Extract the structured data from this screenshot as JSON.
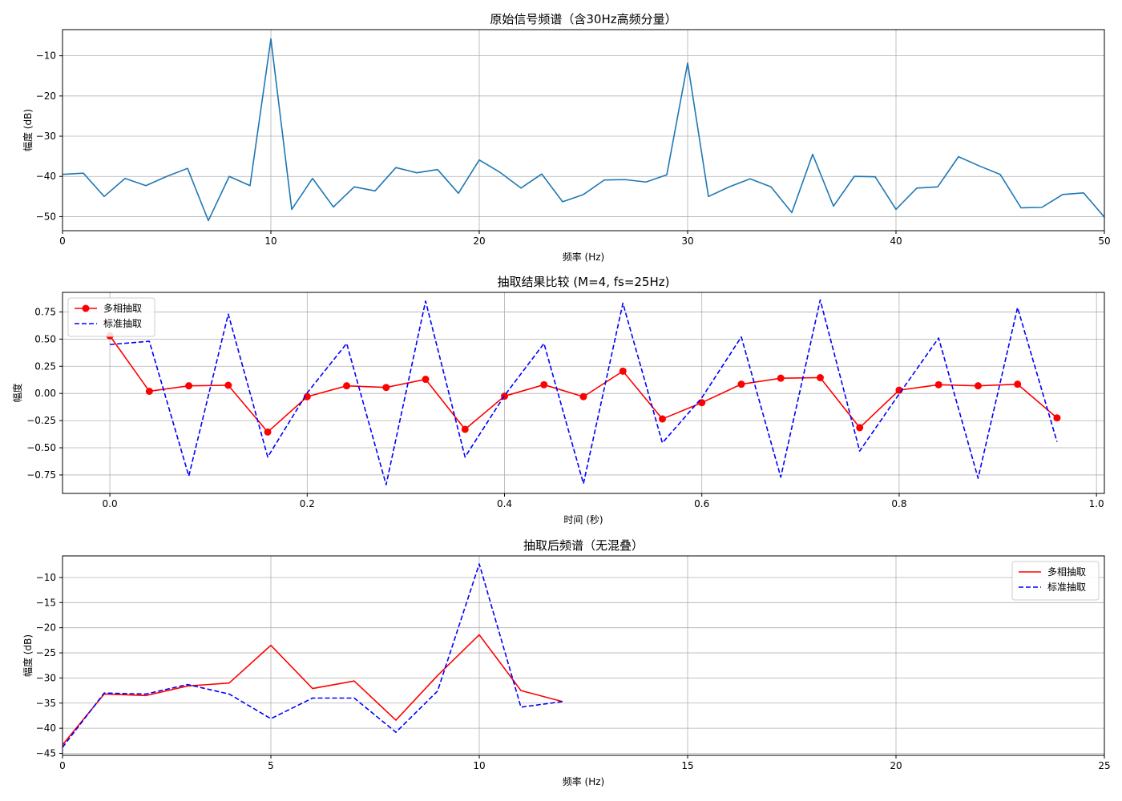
{
  "figure": {
    "background": "#ffffff",
    "grid_color": "#b0b0b0",
    "axis_color": "#000000"
  },
  "chart_data": [
    {
      "type": "line",
      "title": "原始信号频谱（含30Hz高频分量）",
      "xlabel": "频率 (Hz)",
      "ylabel": "幅度 (dB)",
      "xlim": [
        0,
        50
      ],
      "ylim": [
        -53.5,
        -3.5
      ],
      "xticks": [
        0,
        10,
        20,
        30,
        40,
        50
      ],
      "yticks": [
        -50,
        -40,
        -30,
        -20,
        -10
      ],
      "grid": true,
      "legend": null,
      "series": [
        {
          "color": "#1f77b4",
          "style": "solid",
          "marker": "none",
          "x": [
            0,
            1,
            2,
            3,
            4,
            5,
            6,
            7,
            8,
            9,
            10,
            11,
            12,
            13,
            14,
            15,
            16,
            17,
            18,
            19,
            20,
            21,
            22,
            23,
            24,
            25,
            26,
            27,
            28,
            29,
            30,
            31,
            32,
            33,
            34,
            35,
            36,
            37,
            38,
            39,
            40,
            41,
            42,
            43,
            44,
            45,
            46,
            47,
            48,
            49,
            50
          ],
          "y": [
            -39.5,
            -39.2,
            -45,
            -40.5,
            -42.3,
            -40,
            -38,
            -51,
            -40,
            -42.3,
            -5.8,
            -48.2,
            -40.5,
            -47.6,
            -42.6,
            -43.6,
            -37.8,
            -39.1,
            -38.3,
            -44.2,
            -35.9,
            -39,
            -42.9,
            -39.4,
            -46.3,
            -44.5,
            -40.9,
            -40.8,
            -41.4,
            -39.6,
            -11.8,
            -45,
            -42.6,
            -40.6,
            -42.6,
            -49,
            -34.5,
            -47.4,
            -40,
            -40.1,
            -48.2,
            -42.9,
            -42.6,
            -35.1,
            -37.4,
            -39.5,
            -47.8,
            -47.7,
            -44.5,
            -44.1,
            -50.1
          ]
        }
      ]
    },
    {
      "type": "line",
      "title": "抽取结果比较 (M=4, fs=25Hz)",
      "xlabel": "时间 (秒)",
      "ylabel": "幅度",
      "xlim": [
        -0.048,
        1.008
      ],
      "ylim": [
        -0.92,
        0.93
      ],
      "xticks": [
        0.0,
        0.2,
        0.4,
        0.6,
        0.8,
        1.0
      ],
      "xtick_labels": [
        "0.0",
        "0.2",
        "0.4",
        "0.6",
        "0.8",
        "1.0"
      ],
      "yticks": [
        -0.75,
        -0.5,
        -0.25,
        0.0,
        0.25,
        0.5,
        0.75
      ],
      "ytick_labels": [
        "−0.75",
        "−0.50",
        "−0.25",
        "0.00",
        "0.25",
        "0.50",
        "0.75"
      ],
      "grid": true,
      "legend": "upper-left",
      "series": [
        {
          "name": "多相抽取",
          "color": "#ff0000",
          "style": "solid",
          "marker": "circle",
          "x": [
            0,
            0.04,
            0.08,
            0.12,
            0.16,
            0.2,
            0.24,
            0.28,
            0.32,
            0.36,
            0.4,
            0.44,
            0.48,
            0.52,
            0.56,
            0.6,
            0.64,
            0.68,
            0.72,
            0.76,
            0.8,
            0.84,
            0.88,
            0.92,
            0.96
          ],
          "y": [
            0.53,
            0.02,
            0.07,
            0.075,
            -0.355,
            -0.03,
            0.07,
            0.055,
            0.13,
            -0.33,
            -0.025,
            0.08,
            -0.03,
            0.205,
            -0.235,
            -0.085,
            0.085,
            0.14,
            0.145,
            -0.315,
            0.03,
            0.08,
            0.07,
            0.085,
            -0.225
          ]
        },
        {
          "name": "标准抽取",
          "color": "#0000ff",
          "style": "dashed",
          "marker": "none",
          "x": [
            0,
            0.04,
            0.08,
            0.12,
            0.16,
            0.2,
            0.24,
            0.28,
            0.32,
            0.36,
            0.4,
            0.44,
            0.48,
            0.52,
            0.56,
            0.6,
            0.64,
            0.68,
            0.72,
            0.76,
            0.8,
            0.84,
            0.88,
            0.92,
            0.96
          ],
          "y": [
            0.45,
            0.48,
            -0.76,
            0.73,
            -0.585,
            0.005,
            0.46,
            -0.84,
            0.85,
            -0.585,
            -0.02,
            0.46,
            -0.83,
            0.83,
            -0.455,
            -0.04,
            0.52,
            -0.77,
            0.86,
            -0.53,
            -0.005,
            0.51,
            -0.78,
            0.79,
            -0.445
          ]
        }
      ]
    },
    {
      "type": "line",
      "title": "抽取后频谱（无混叠）",
      "xlabel": "频率 (Hz)",
      "ylabel": "幅度 (dB)",
      "xlim": [
        0,
        25
      ],
      "ylim": [
        -45.4,
        -5.7
      ],
      "xticks": [
        0,
        5,
        10,
        15,
        20,
        25
      ],
      "yticks": [
        -45,
        -40,
        -35,
        -30,
        -25,
        -20,
        -15,
        -10
      ],
      "grid": true,
      "legend": "upper-right",
      "series": [
        {
          "name": "多相抽取",
          "color": "#ff0000",
          "style": "solid",
          "marker": "none",
          "x": [
            0,
            1,
            2,
            3,
            4,
            5,
            6,
            7,
            8,
            9,
            10,
            11,
            12
          ],
          "y": [
            -43.3,
            -33.2,
            -33.5,
            -31.6,
            -31,
            -23.5,
            -32.1,
            -30.6,
            -38.4,
            -29.5,
            -21.4,
            -32.5,
            -34.7
          ]
        },
        {
          "name": "标准抽取",
          "color": "#0000ff",
          "style": "dashed",
          "marker": "none",
          "x": [
            0,
            1,
            2,
            3,
            4,
            5,
            6,
            7,
            8,
            9,
            10,
            11,
            12
          ],
          "y": [
            -43.8,
            -33,
            -33.2,
            -31.3,
            -33.2,
            -38.1,
            -34,
            -34,
            -40.8,
            -32.6,
            -7.3,
            -35.8,
            -34.7
          ]
        }
      ]
    }
  ]
}
